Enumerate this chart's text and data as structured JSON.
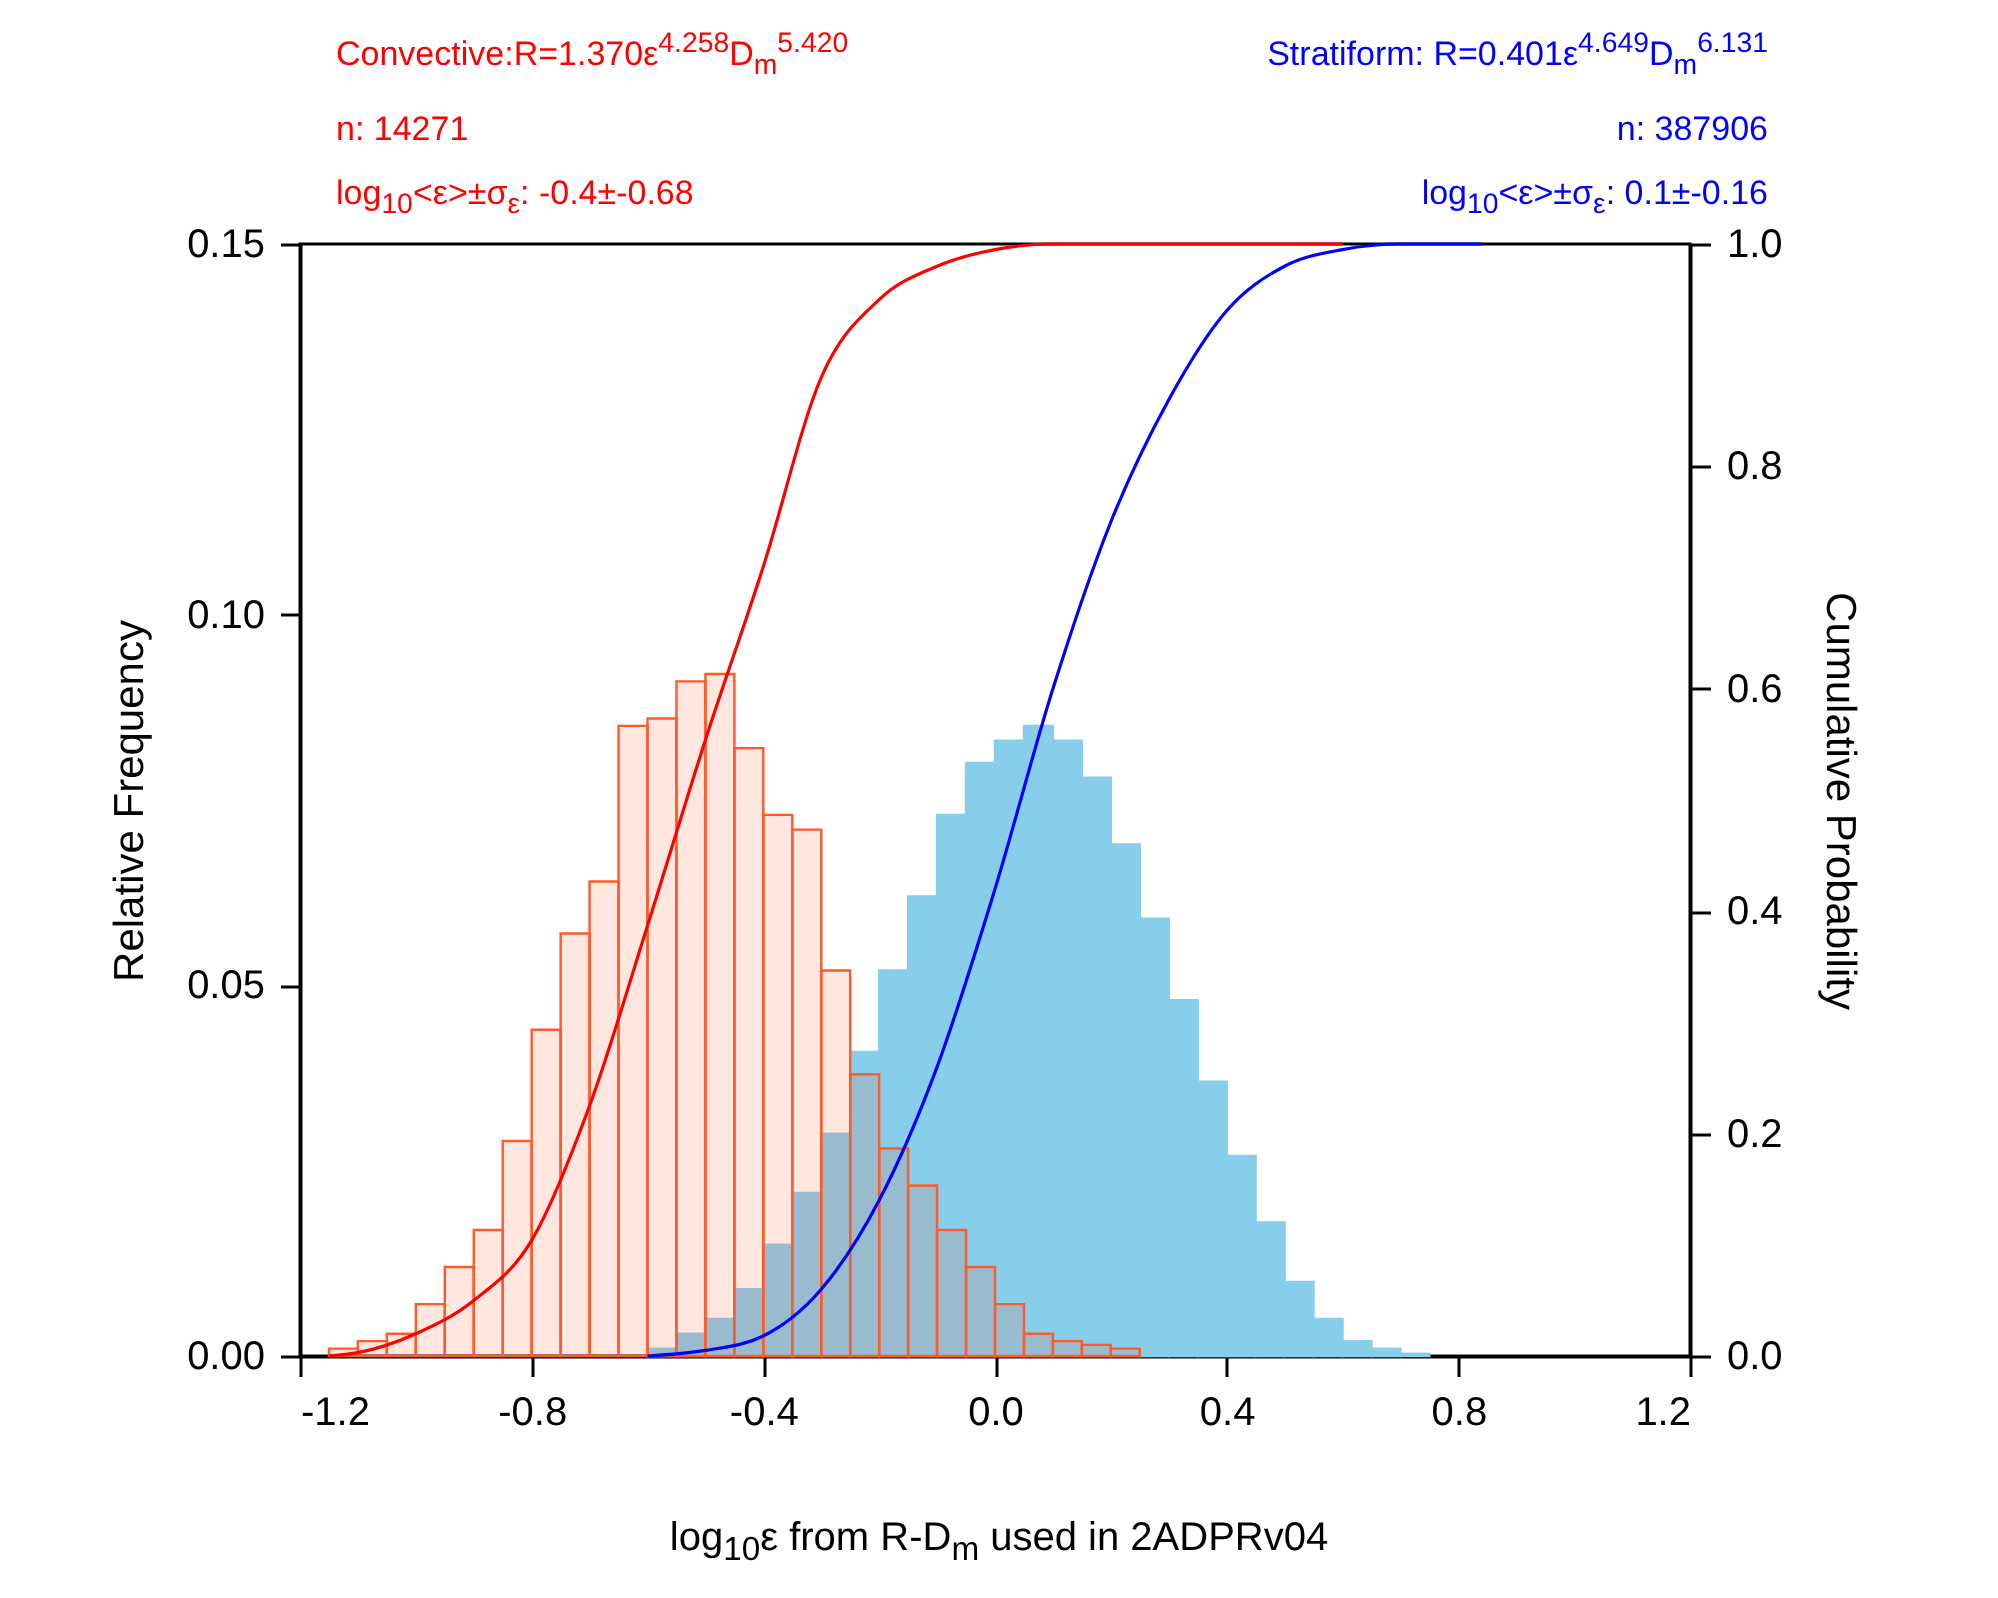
{
  "chart_data": {
    "type": "histogram",
    "xlabel": "log$_{10}$ε from R-D$_{m}$ used in 2ADPRv04",
    "ylabel": "Relative Frequency",
    "y2label": "Cumulative Probability",
    "annotations": [
      "Convective:R=1.370ε$^{4.258}$D$_{m}$$^{5.420}$",
      "n: 14271",
      "log$_{10}$<ε>±σ$_{ε}$: -0.4±-0.68",
      "Stratiform: R=0.401ε$^{4.649}$D$_{m}$$^{6.131}$",
      "n: 387906",
      "log$_{10}$<ε>±σ$_{ε}$:  0.1±-0.16"
    ],
    "bins": [
      -1.15,
      -1.1,
      -1.05,
      -1.0,
      -0.95,
      -0.9,
      -0.85,
      -0.8,
      -0.75,
      -0.7,
      -0.65,
      -0.6,
      -0.55,
      -0.5,
      -0.45,
      -0.4,
      -0.35,
      -0.3,
      -0.25,
      -0.2,
      -0.15,
      -0.1,
      -0.05,
      0.0,
      0.05,
      0.1,
      0.15,
      0.2,
      0.25,
      0.3,
      0.35,
      0.4,
      0.45,
      0.5,
      0.55,
      0.6,
      0.65,
      0.7,
      0.75
    ],
    "series": [
      {
        "color": "#87ceeb",
        "values": [
          null,
          null,
          null,
          null,
          null,
          null,
          null,
          null,
          null,
          null,
          null,
          0.001,
          0.003,
          0.005,
          0.009,
          0.015,
          0.022,
          0.03,
          0.041,
          0.052,
          0.062,
          0.073,
          0.08,
          0.083,
          0.085,
          0.083,
          0.078,
          0.069,
          0.059,
          0.048,
          0.037,
          0.027,
          0.018,
          0.01,
          0.005,
          0.002,
          0.001,
          0.0003
        ]
      },
      {
        "color": "#ff5a2a",
        "values": [
          0.001,
          0.002,
          0.003,
          0.007,
          0.012,
          0.017,
          0.029,
          0.044,
          0.057,
          0.064,
          0.085,
          0.086,
          0.091,
          0.092,
          0.082,
          0.073,
          0.071,
          0.052,
          0.038,
          0.028,
          0.023,
          0.017,
          0.012,
          0.007,
          0.003,
          0.002,
          0.0015,
          0.001,
          null,
          null,
          null,
          null,
          null,
          null,
          null,
          null,
          null,
          null
        ]
      },
      {
        "type": "line",
        "axis": "y2",
        "color": "#ff0000",
        "x": [
          -1.15,
          -1.1,
          -1.0,
          -0.9,
          -0.8,
          -0.7,
          -0.6,
          -0.5,
          -0.4,
          -0.3,
          -0.2,
          -0.1,
          0.0,
          0.1,
          0.3,
          0.6
        ],
        "values": [
          0,
          0.003,
          0.02,
          0.05,
          0.104,
          0.225,
          0.387,
          0.554,
          0.71,
          0.88,
          0.95,
          0.98,
          0.995,
          1.0,
          1.0,
          1.0
        ]
      },
      {
        "type": "line",
        "axis": "y2",
        "color": "#0000ff",
        "x": [
          -0.6,
          -0.5,
          -0.4,
          -0.3,
          -0.2,
          -0.1,
          0.0,
          0.1,
          0.2,
          0.3,
          0.4,
          0.5,
          0.6,
          0.7,
          0.84
        ],
        "values": [
          0,
          0.005,
          0.018,
          0.06,
          0.14,
          0.26,
          0.42,
          0.6,
          0.75,
          0.86,
          0.94,
          0.98,
          0.995,
          1.0,
          1.0
        ]
      }
    ],
    "xlim": [
      -1.2,
      1.2
    ],
    "xticks": [
      -1.2,
      -0.8,
      -0.4,
      {
        "value": 0,
        "label": "0.0"
      },
      0.4,
      0.8,
      1.2
    ],
    "ylim": [
      0,
      0.15
    ],
    "yticks": [
      {
        "value": 0,
        "label": "0.00"
      },
      {
        "value": 0.05,
        "label": "0.05"
      },
      {
        "value": 0.1,
        "label": "0.10"
      },
      {
        "value": 0.15,
        "label": "0.15"
      }
    ],
    "y2lim": [
      0,
      1
    ],
    "y2ticks": [
      {
        "value": 0,
        "label": "0.0"
      },
      {
        "value": 0.2,
        "label": "0.2"
      },
      {
        "value": 0.4,
        "label": "0.4"
      },
      {
        "value": 0.6,
        "label": "0.6"
      },
      {
        "value": 0.8,
        "label": "0.8"
      },
      {
        "value": 1,
        "label": "1.0"
      }
    ]
  }
}
